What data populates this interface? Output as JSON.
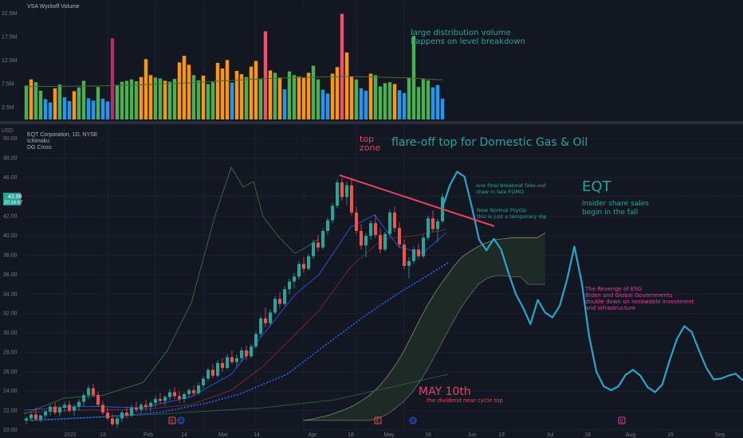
{
  "volume_panel": {
    "title": "VSA Wyckoff Volume",
    "y_ticks": [
      "22.5M",
      "17.5M",
      "12.5M",
      "7.5M",
      "2.5M"
    ],
    "annotation": [
      "large distribution volume",
      "happens on level breakdown"
    ]
  },
  "price_panel": {
    "symbol_line": "EQT Corporation, 1D, NYSE",
    "indicators": [
      "Ichimoku",
      "DG Cross"
    ],
    "currency": "USD",
    "last_price": "43.99",
    "countdown": "20:14:47",
    "y_ticks": [
      "50.00",
      "48.00",
      "46.00",
      "44.00",
      "42.00",
      "40.00",
      "38.00",
      "36.00",
      "34.00",
      "32.00",
      "30.00",
      "28.00",
      "26.00",
      "24.00",
      "22.00",
      "20.00"
    ],
    "x_ticks": [
      "2022",
      "13",
      "Feb",
      "14",
      "Mar",
      "14",
      "Apr",
      "18",
      "May",
      "16",
      "Jun",
      "13",
      "Jul",
      "18",
      "Aug",
      "15",
      "Sep"
    ],
    "event_markers": [
      "E",
      "D",
      "E",
      "D",
      "E"
    ]
  },
  "annotations": {
    "top_zone": [
      "top",
      "zone"
    ],
    "flare_off": "flare-off top for Domestic Gas & Oil",
    "ticker": "EQT",
    "insider": [
      "insider share sales",
      "begin in the fall"
    ],
    "fakeout": [
      "one final breakout fake-out",
      "draw in late FOMO"
    ],
    "psyop": [
      "New Normal PsyOp",
      "this is just a temporary dip"
    ],
    "esg": [
      "The Revenge of ESG",
      "Biden and Global Governments",
      "double down on renewable investment",
      "and infrastructure"
    ],
    "may10": "MAY 10th",
    "dividend": "the dividend near cycle top"
  },
  "colors": {
    "background": "#131722",
    "up_candle": "#26a69a",
    "down_candle": "#ef5350",
    "projection": "#2aa5c8",
    "annotation_teal": "#26a69a",
    "annotation_red": "#e2455d",
    "annotation_pink": "#e040a0",
    "volume_green": "#4caf50",
    "volume_orange": "#ff9800",
    "volume_blue": "#2196f3",
    "volume_red": "#f0506e",
    "volume_magenta": "#b0306f"
  },
  "chart_data": {
    "type": "candlestick",
    "title": "EQT Corporation, 1D, NYSE",
    "ylabel": "USD",
    "ylim": [
      20,
      51
    ],
    "volume_ylim": [
      0,
      25
    ],
    "x_labels": [
      "2022",
      "13",
      "Feb",
      "14",
      "Mar",
      "14",
      "Apr",
      "18",
      "May",
      "16",
      "Jun",
      "13",
      "Jul",
      "18",
      "Aug",
      "15",
      "Sep"
    ],
    "ohlc": [
      [
        21.0,
        21.4,
        20.6,
        21.2
      ],
      [
        21.2,
        21.8,
        20.9,
        21.6
      ],
      [
        21.6,
        22.3,
        21.1,
        21.1
      ],
      [
        21.1,
        21.6,
        20.8,
        21.5
      ],
      [
        21.5,
        22.1,
        21.2,
        21.9
      ],
      [
        21.9,
        22.6,
        21.5,
        22.4
      ],
      [
        22.4,
        22.8,
        21.6,
        21.8
      ],
      [
        21.8,
        22.5,
        21.4,
        22.3
      ],
      [
        22.3,
        22.9,
        21.9,
        22.6
      ],
      [
        22.6,
        23.0,
        21.8,
        22.0
      ],
      [
        22.0,
        22.6,
        21.5,
        22.4
      ],
      [
        22.4,
        23.2,
        22.0,
        22.9
      ],
      [
        22.9,
        23.8,
        22.5,
        23.6
      ],
      [
        23.6,
        24.6,
        23.2,
        24.3
      ],
      [
        24.3,
        24.8,
        23.4,
        23.6
      ],
      [
        23.6,
        24.0,
        22.4,
        22.6
      ],
      [
        22.6,
        23.0,
        21.6,
        21.8
      ],
      [
        21.8,
        22.3,
        21.0,
        21.2
      ],
      [
        21.2,
        21.6,
        20.4,
        20.6
      ],
      [
        20.6,
        21.4,
        20.2,
        21.2
      ],
      [
        21.2,
        22.0,
        20.8,
        21.8
      ],
      [
        21.8,
        22.4,
        21.2,
        21.5
      ],
      [
        21.5,
        22.6,
        21.3,
        22.3
      ],
      [
        22.3,
        22.9,
        21.8,
        22.1
      ],
      [
        22.1,
        22.8,
        21.7,
        22.6
      ],
      [
        22.6,
        23.1,
        22.0,
        22.4
      ],
      [
        22.4,
        23.0,
        21.9,
        22.8
      ],
      [
        22.8,
        23.5,
        22.4,
        23.2
      ],
      [
        23.2,
        23.8,
        22.7,
        23.0
      ],
      [
        23.0,
        23.6,
        22.5,
        23.4
      ],
      [
        23.4,
        24.2,
        23.0,
        23.9
      ],
      [
        23.9,
        24.4,
        23.2,
        23.5
      ],
      [
        23.5,
        24.0,
        22.8,
        23.2
      ],
      [
        23.2,
        23.9,
        22.8,
        23.7
      ],
      [
        23.7,
        24.3,
        23.3,
        24.1
      ],
      [
        24.1,
        24.6,
        23.5,
        23.8
      ],
      [
        23.8,
        24.9,
        23.6,
        24.6
      ],
      [
        24.6,
        25.6,
        24.3,
        25.3
      ],
      [
        25.3,
        26.4,
        25.0,
        26.2
      ],
      [
        26.2,
        26.8,
        25.3,
        25.6
      ],
      [
        25.6,
        27.2,
        25.4,
        26.9
      ],
      [
        26.9,
        27.4,
        26.0,
        26.4
      ],
      [
        26.4,
        27.8,
        26.2,
        27.5
      ],
      [
        27.5,
        28.2,
        26.8,
        27.0
      ],
      [
        27.0,
        27.8,
        26.4,
        27.4
      ],
      [
        27.4,
        28.5,
        27.0,
        28.2
      ],
      [
        28.2,
        28.7,
        27.2,
        27.6
      ],
      [
        27.6,
        28.9,
        27.4,
        28.6
      ],
      [
        28.6,
        30.2,
        28.4,
        29.9
      ],
      [
        29.9,
        31.8,
        29.6,
        31.5
      ],
      [
        31.5,
        32.6,
        30.6,
        31.0
      ],
      [
        31.0,
        32.4,
        30.7,
        32.1
      ],
      [
        32.1,
        33.8,
        31.9,
        33.5
      ],
      [
        33.5,
        34.2,
        32.6,
        33.0
      ],
      [
        33.0,
        34.8,
        32.8,
        34.5
      ],
      [
        34.5,
        35.6,
        34.0,
        35.3
      ],
      [
        35.3,
        36.2,
        34.6,
        35.8
      ],
      [
        35.8,
        37.4,
        35.5,
        37.1
      ],
      [
        37.1,
        37.8,
        36.2,
        36.6
      ],
      [
        36.6,
        38.2,
        36.4,
        37.9
      ],
      [
        37.9,
        39.6,
        37.6,
        39.3
      ],
      [
        39.3,
        40.1,
        38.4,
        38.8
      ],
      [
        38.8,
        40.8,
        38.6,
        40.5
      ],
      [
        40.5,
        41.9,
        40.1,
        41.6
      ],
      [
        41.6,
        43.4,
        41.3,
        43.1
      ],
      [
        43.1,
        45.8,
        42.8,
        45.5
      ],
      [
        45.5,
        45.9,
        43.6,
        44.0
      ],
      [
        44.0,
        45.6,
        43.2,
        45.2
      ],
      [
        45.2,
        45.8,
        42.1,
        42.4
      ],
      [
        42.4,
        43.0,
        40.2,
        40.5
      ],
      [
        40.5,
        41.2,
        38.6,
        39.0
      ],
      [
        39.0,
        40.3,
        37.8,
        40.0
      ],
      [
        40.0,
        41.6,
        39.6,
        41.3
      ],
      [
        41.3,
        42.2,
        39.8,
        40.1
      ],
      [
        40.1,
        40.8,
        38.2,
        38.6
      ],
      [
        38.6,
        40.4,
        38.4,
        40.2
      ],
      [
        40.2,
        42.7,
        39.9,
        42.4
      ],
      [
        42.4,
        43.0,
        40.4,
        40.8
      ],
      [
        40.8,
        41.4,
        38.8,
        39.1
      ],
      [
        39.1,
        39.6,
        36.6,
        36.9
      ],
      [
        36.9,
        37.8,
        35.6,
        37.4
      ],
      [
        37.4,
        38.9,
        37.1,
        38.6
      ],
      [
        38.6,
        39.2,
        37.6,
        37.9
      ],
      [
        37.9,
        40.1,
        37.7,
        39.8
      ],
      [
        39.8,
        42.1,
        39.5,
        41.8
      ],
      [
        41.8,
        42.6,
        40.4,
        40.7
      ],
      [
        40.7,
        41.8,
        39.4,
        41.5
      ],
      [
        41.5,
        44.4,
        41.3,
        43.99
      ]
    ],
    "volume_millions": [
      7.2,
      8.5,
      7.9,
      6.1,
      4.3,
      3.6,
      6.6,
      7.4,
      4.7,
      3.9,
      6.0,
      6.8,
      8.2,
      4.5,
      4.0,
      6.9,
      4.4,
      3.8,
      17.2,
      7.3,
      8.0,
      8.2,
      8.5,
      8.1,
      9.0,
      12.8,
      9.4,
      8.9,
      8.7,
      8.2,
      8.0,
      8.6,
      12.1,
      13.5,
      11.6,
      9.4,
      8.3,
      9.3,
      7.5,
      7.9,
      12.0,
      10.8,
      12.6,
      7.8,
      10.3,
      9.6,
      9.0,
      11.2,
      12.4,
      8.6,
      18.7,
      10.4,
      9.9,
      8.9,
      6.4,
      10.2,
      9.4,
      9.1,
      8.8,
      9.9,
      11.4,
      8.5,
      6.3,
      5.5,
      9.7,
      11.1,
      22.4,
      14.2,
      9.1,
      8.5,
      6.6,
      6.1,
      9.7,
      9.4,
      7.0,
      7.7,
      7.9,
      7.5,
      6.2,
      5.6,
      8.9,
      17.7,
      6.9,
      8.6,
      8.3,
      6.8,
      7.3,
      4.4
    ],
    "volume_colors": [
      "G",
      "O",
      "G",
      "G",
      "B",
      "B",
      "O",
      "G",
      "B",
      "B",
      "O",
      "G",
      "G",
      "B",
      "B",
      "G",
      "B",
      "B",
      "M",
      "G",
      "G",
      "G",
      "G",
      "G",
      "O",
      "O",
      "O",
      "G",
      "G",
      "O",
      "G",
      "G",
      "O",
      "O",
      "O",
      "G",
      "G",
      "O",
      "G",
      "G",
      "O",
      "O",
      "O",
      "B",
      "O",
      "O",
      "G",
      "O",
      "O",
      "G",
      "R",
      "O",
      "G",
      "O",
      "B",
      "G",
      "G",
      "O",
      "O",
      "O",
      "G",
      "G",
      "B",
      "B",
      "O",
      "O",
      "R",
      "O",
      "O",
      "G",
      "B",
      "B",
      "O",
      "G",
      "G",
      "G",
      "G",
      "O",
      "B",
      "B",
      "G",
      "G",
      "G",
      "G",
      "G",
      "B",
      "B",
      "B"
    ],
    "volume_ma": [
      7.0,
      7.0,
      7.0,
      7.1,
      7.1,
      7.2,
      7.3,
      7.4,
      7.6,
      7.7,
      7.9,
      8.1,
      8.3,
      8.5,
      8.7,
      8.8,
      8.9,
      9.0,
      9.1,
      9.1,
      9.0,
      8.9,
      8.8,
      8.6,
      8.4
    ],
    "ichimoku_cloud_a": [
      21,
      21.1,
      21.3,
      21.5,
      21.8,
      22.1,
      22.5,
      23,
      23.6,
      24.4,
      25.4,
      26.6,
      28,
      29.7,
      31.4,
      33,
      34.4,
      35.6,
      36.8,
      37.8,
      38.4,
      38.9,
      39.3,
      39.6,
      39.7,
      39.8,
      39.8,
      39.8,
      39.8,
      40.3
    ],
    "ichimoku_cloud_b": [
      21,
      21,
      21,
      21,
      21,
      21,
      21,
      21,
      21,
      21.2,
      21.6,
      22.2,
      22.9,
      23.8,
      25,
      26.4,
      28,
      29.6,
      31.2,
      32.7,
      33.9,
      35,
      35.6,
      35.9,
      35.9,
      35.8,
      35.8,
      35,
      35,
      35
    ],
    "projection": [
      42.9,
      45.2,
      46.6,
      46.1,
      43,
      39.6,
      38.5,
      39.7,
      38.6,
      36.2,
      34,
      32.6,
      30.9,
      33.4,
      32.1,
      31.6,
      32.8,
      35.5,
      38.9,
      35.2,
      29.7,
      26,
      24.5,
      24.1,
      24.5,
      25.7,
      26.2,
      25.6,
      24.4,
      23.9,
      24.7,
      27.2,
      29.4,
      30.7,
      30.1,
      28.2,
      26.4,
      25.2,
      25.3,
      25.6,
      25.8,
      25.1
    ]
  }
}
